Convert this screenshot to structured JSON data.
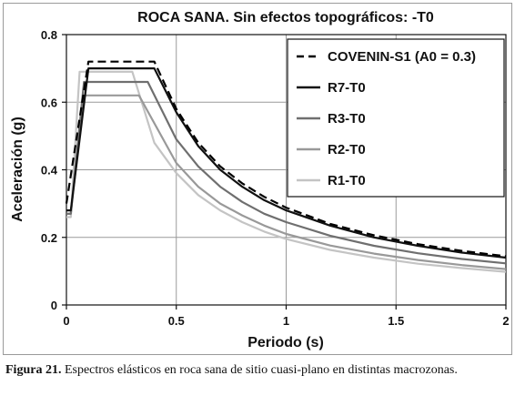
{
  "caption": {
    "label": "Figura 21.",
    "text": " Espectros elásticos en roca sana de sitio cuasi-plano en distintas macrozonas."
  },
  "chart_data": {
    "type": "line",
    "title": "ROCA SANA.  Sin efectos topográficos: -T0",
    "xlabel": "Periodo (s)",
    "ylabel": "Aceleración (g)",
    "xlim": [
      0,
      2
    ],
    "ylim": [
      0,
      0.8
    ],
    "xticks": [
      0,
      0.5,
      1,
      1.5,
      2
    ],
    "xtick_labels": [
      "0",
      "0.5",
      "1",
      "1.5",
      "2"
    ],
    "yticks": [
      0,
      0.2,
      0.4,
      0.6,
      0.8
    ],
    "ytick_labels": [
      "0",
      "0.2",
      "0.4",
      "0.6",
      "0.8"
    ],
    "grid": true,
    "legend_position": "top-right",
    "series": [
      {
        "name": "COVENIN-S1 (A0 = 0.3)",
        "color": "#000000",
        "dashed": true,
        "x": [
          0,
          0.1,
          0.4,
          0.5,
          0.6,
          0.7,
          0.8,
          0.9,
          1.0,
          1.2,
          1.4,
          1.6,
          1.8,
          2.0
        ],
        "y": [
          0.3,
          0.72,
          0.72,
          0.58,
          0.48,
          0.41,
          0.36,
          0.32,
          0.288,
          0.24,
          0.206,
          0.18,
          0.16,
          0.144
        ]
      },
      {
        "name": "R7-T0",
        "color": "#111111",
        "dashed": false,
        "x": [
          0,
          0.02,
          0.1,
          0.4,
          0.5,
          0.6,
          0.7,
          0.8,
          0.9,
          1.0,
          1.2,
          1.4,
          1.6,
          1.8,
          2.0
        ],
        "y": [
          0.28,
          0.28,
          0.7,
          0.7,
          0.57,
          0.47,
          0.4,
          0.35,
          0.31,
          0.28,
          0.235,
          0.2,
          0.175,
          0.155,
          0.14
        ]
      },
      {
        "name": "R3-T0",
        "color": "#6f6f6f",
        "dashed": false,
        "x": [
          0,
          0.02,
          0.08,
          0.37,
          0.5,
          0.6,
          0.7,
          0.8,
          0.9,
          1.0,
          1.2,
          1.4,
          1.6,
          1.8,
          2.0
        ],
        "y": [
          0.27,
          0.27,
          0.66,
          0.66,
          0.49,
          0.41,
          0.35,
          0.305,
          0.27,
          0.245,
          0.205,
          0.175,
          0.153,
          0.136,
          0.123
        ]
      },
      {
        "name": "R2-T0",
        "color": "#999999",
        "dashed": false,
        "x": [
          0,
          0.02,
          0.08,
          0.33,
          0.5,
          0.6,
          0.7,
          0.8,
          0.9,
          1.0,
          1.2,
          1.4,
          1.6,
          1.8,
          2.0
        ],
        "y": [
          0.27,
          0.27,
          0.62,
          0.62,
          0.42,
          0.35,
          0.3,
          0.265,
          0.235,
          0.21,
          0.176,
          0.152,
          0.133,
          0.118,
          0.106
        ]
      },
      {
        "name": "R1-T0",
        "color": "#c4c4c4",
        "dashed": false,
        "x": [
          0,
          0.02,
          0.06,
          0.3,
          0.4,
          0.5,
          0.6,
          0.7,
          0.8,
          0.9,
          1.0,
          1.2,
          1.4,
          1.6,
          1.8,
          2.0
        ],
        "y": [
          0.26,
          0.26,
          0.69,
          0.69,
          0.48,
          0.39,
          0.325,
          0.28,
          0.245,
          0.217,
          0.195,
          0.163,
          0.14,
          0.122,
          0.109,
          0.098
        ]
      }
    ]
  }
}
